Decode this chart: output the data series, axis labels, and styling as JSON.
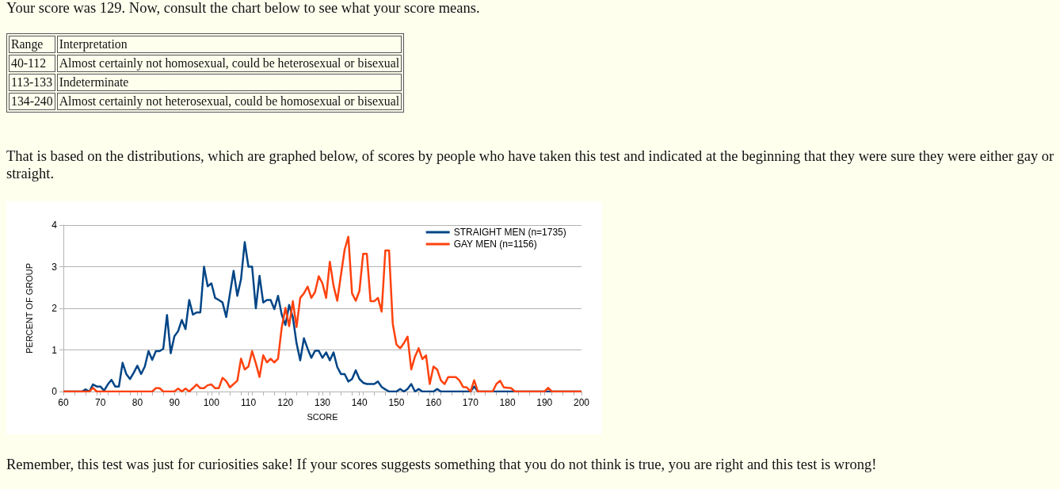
{
  "chart_data": {
    "type": "line",
    "title": "Your score was 129. Now, consult the chart below to see what your score means.",
    "annotations": [
      "Range",
      "Interpretation",
      "40-112",
      "Almost certainly not homosexual, could be heterosexual or bisexual",
      "113-133",
      "Indeterminate",
      "134-240",
      "Almost certainly not heterosexual, could be homosexual or bisexual",
      "That is based on the distributions, which are graphed below, of scores by people who have taken this test and indicated at the beginning that they were sure they were either gay or straight.",
      "Remember, this test was just for curiosities sake! If your scores suggests something that you do not think is true, you are right and this test is wrong!"
    ],
    "xlabel": "SCORE",
    "ylabel": "PERCENT OF GROUP",
    "xlim": [
      60,
      200
    ],
    "xticks": [
      60,
      70,
      80,
      90,
      100,
      110,
      120,
      130,
      140,
      150,
      160,
      170,
      180,
      190,
      200
    ],
    "ylim": [
      0,
      4
    ],
    "yticks": [
      0,
      1,
      2,
      3,
      4
    ],
    "grid": "y",
    "legend": "top right",
    "marker": "none",
    "line_style": "solid",
    "series": [
      {
        "name": "STRAIGHT MEN (n=1735)",
        "color": "#004586",
        "x": [
          60,
          65,
          66,
          67,
          68,
          69,
          70,
          71,
          72,
          73,
          74,
          75,
          76,
          77,
          78,
          79,
          80,
          81,
          82,
          83,
          84,
          85,
          86,
          87,
          88,
          89,
          90,
          91,
          92,
          93,
          94,
          95,
          96,
          97,
          98,
          99,
          100,
          101,
          102,
          103,
          104,
          106,
          107,
          108,
          109,
          110,
          111,
          112,
          113,
          114,
          115,
          116,
          117,
          118,
          119,
          120,
          121,
          122,
          123,
          124,
          125,
          126,
          127,
          128,
          129,
          130,
          131,
          132,
          133,
          134,
          135,
          136,
          137,
          138,
          139,
          140,
          141,
          142,
          143,
          144,
          145,
          146,
          147,
          148,
          149,
          150,
          151,
          152,
          153,
          154,
          155,
          156,
          157,
          158,
          159,
          160,
          161,
          162,
          170,
          171,
          172,
          200
        ],
        "values": [
          0,
          0,
          0.05,
          0,
          0.17,
          0.12,
          0.12,
          0.02,
          0.17,
          0.28,
          0.12,
          0.12,
          0.69,
          0.42,
          0.3,
          0.45,
          0.62,
          0.42,
          0.6,
          0.97,
          0.76,
          0.97,
          0.97,
          1.03,
          1.84,
          0.92,
          1.33,
          1.45,
          1.72,
          1.5,
          2.2,
          1.85,
          1.9,
          1.9,
          3.0,
          2.53,
          2.6,
          2.25,
          2.2,
          2.14,
          1.79,
          2.9,
          2.3,
          2.7,
          3.59,
          3.0,
          3.0,
          2.0,
          2.78,
          2.14,
          2.2,
          2.2,
          1.98,
          2.3,
          1.85,
          1.6,
          2.08,
          1.79,
          1.16,
          0.75,
          1.28,
          1.03,
          0.81,
          0.98,
          0.98,
          0.81,
          0.94,
          0.75,
          0.94,
          0.59,
          0.42,
          0.42,
          0.24,
          0.3,
          0.51,
          0.3,
          0.21,
          0.18,
          0.18,
          0.18,
          0.24,
          0.11,
          0.05,
          0,
          0,
          0,
          0.06,
          0,
          0.06,
          0.18,
          0,
          0.06,
          0,
          0,
          0,
          0,
          0.06,
          0,
          0,
          0.12,
          0,
          0
        ]
      },
      {
        "name": "GAY MEN (n=1156)",
        "color": "#ff420e",
        "x": [
          60,
          67,
          68,
          69,
          84,
          85,
          86,
          87,
          90,
          91,
          92,
          93,
          94,
          95,
          96,
          97,
          98,
          99,
          100,
          101,
          102,
          103,
          104,
          105,
          107,
          108,
          109,
          110,
          111,
          112,
          113,
          114,
          115,
          116,
          117,
          118,
          119,
          120,
          121,
          122,
          123,
          124,
          125,
          126,
          127,
          128,
          129,
          130,
          131,
          132,
          133,
          134,
          135,
          136,
          137,
          138,
          139,
          140,
          141,
          142,
          143,
          144,
          145,
          146,
          147,
          148,
          149,
          150,
          151,
          152,
          153,
          154,
          155,
          156,
          157,
          158,
          159,
          160,
          161,
          162,
          163,
          164,
          166,
          167,
          168,
          169,
          170,
          171,
          172,
          176,
          177,
          178,
          179,
          181,
          182,
          190,
          191,
          192,
          200
        ],
        "values": [
          0,
          0,
          0.09,
          0,
          0,
          0.08,
          0.08,
          0,
          0,
          0.07,
          0,
          0.07,
          0,
          0.08,
          0.17,
          0.08,
          0.08,
          0.15,
          0.17,
          0.08,
          0.08,
          0.33,
          0.25,
          0.1,
          0.26,
          0.79,
          0.53,
          0.6,
          0.97,
          0.68,
          0.35,
          0.87,
          0.7,
          0.79,
          0.7,
          0.79,
          1.54,
          2.01,
          1.57,
          2.17,
          1.55,
          2.25,
          2.36,
          2.52,
          2.25,
          2.39,
          2.77,
          2.6,
          2.25,
          3.12,
          2.54,
          2.18,
          2.8,
          3.41,
          3.72,
          2.36,
          2.18,
          2.42,
          3.31,
          3.31,
          2.17,
          2.17,
          2.25,
          1.92,
          3.39,
          3.39,
          1.63,
          1.13,
          1.04,
          1.16,
          1.32,
          0.53,
          0.84,
          1.04,
          0.78,
          0.87,
          0.18,
          0.6,
          0.53,
          0.27,
          0.18,
          0.35,
          0.35,
          0.27,
          0.11,
          0.1,
          0,
          0.27,
          0,
          0,
          0.18,
          0.26,
          0.1,
          0.08,
          0,
          0,
          0.09,
          0,
          0
        ]
      }
    ]
  }
}
